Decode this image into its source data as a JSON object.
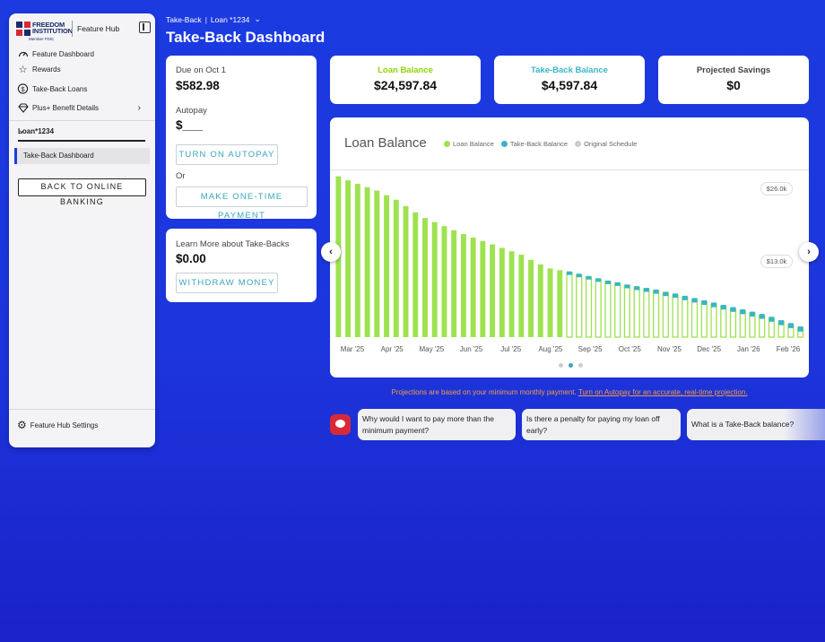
{
  "sidebar": {
    "logo": {
      "line1": "FREEDOM",
      "line2": "INSTITUTION",
      "sub": "Member FDIC"
    },
    "hub_label": "Feature Hub",
    "items": [
      {
        "label": "Feature Dashboard",
        "icon": "gauge-icon"
      },
      {
        "label": "Rewards",
        "icon": "star-icon"
      },
      {
        "label": "Take-Back Loans",
        "icon": "dollar-cycle-icon"
      },
      {
        "label": "Plus+ Benefit Details",
        "icon": "diamond-icon"
      }
    ],
    "loan_select": "Loan*1234",
    "sub_item": "Take-Back Dashboard",
    "back_button": "BACK TO ONLINE BANKING",
    "settings": "Feature Hub Settings"
  },
  "header": {
    "breadcrumb_1": "Take-Back",
    "breadcrumb_2": "Loan *1234",
    "title": "Take-Back Dashboard"
  },
  "due_card": {
    "due_label": "Due on Oct 1",
    "due_amount": "$582.98",
    "autopay_label": "Autopay",
    "autopay_value": "$___",
    "autopay_button": "TURN ON AUTOPAY",
    "or": "Or",
    "one_time_button": "MAKE ONE-TIME PAYMENT"
  },
  "learn_card": {
    "label": "Learn More about Take-Backs",
    "amount": "$0.00",
    "button": "WITHDRAW MONEY"
  },
  "stats": [
    {
      "label": "Loan Balance",
      "value": "$24,597.84",
      "color": "#8fd400"
    },
    {
      "label": "Take-Back Balance",
      "value": "$4,597.84",
      "color": "#3ab4c9"
    },
    {
      "label": "Projected Savings",
      "value": "$0",
      "color": "#444444"
    }
  ],
  "chart_data": {
    "type": "bar",
    "title": "Loan Balance",
    "legend": [
      {
        "name": "Loan Balance",
        "color": "#9ee24f"
      },
      {
        "name": "Take-Back Balance",
        "color": "#3ab4c9"
      },
      {
        "name": "Original Schedule",
        "color": "#cccccc"
      }
    ],
    "y_tick_labels": [
      "$26.0k",
      "$13.0k"
    ],
    "x_tick_labels": [
      "Mar '25",
      "Apr '25",
      "May '25",
      "Jun '25",
      "Jul '25",
      "Aug '25",
      "Sep '25",
      "Oct '25",
      "Nov '25",
      "Dec '25",
      "Jan '26",
      "Feb '26"
    ],
    "ylim": [
      0,
      28200
    ],
    "series": [
      {
        "name": "Loan Balance",
        "values": [
          28100,
          27400,
          26800,
          26200,
          25600,
          24800,
          24000,
          22900,
          21800,
          20800,
          20100,
          19400,
          18700,
          18000,
          17400,
          16800,
          16200,
          15600,
          15000,
          14400,
          13500,
          12700,
          12000,
          11700,
          11300,
          10900,
          10500,
          10100,
          9700,
          9400,
          9000,
          8700,
          8400,
          8100,
          7700,
          7400,
          7000,
          6600,
          6200,
          5800,
          5400,
          5000,
          4600,
          4200,
          3800,
          3300,
          2700,
          2200,
          1600
        ]
      },
      {
        "name": "Take-Back Balance",
        "values": [
          0,
          0,
          0,
          0,
          0,
          0,
          0,
          0,
          0,
          0,
          0,
          0,
          0,
          0,
          0,
          0,
          0,
          0,
          0,
          0,
          0,
          0,
          0,
          0,
          500,
          550,
          580,
          600,
          620,
          640,
          660,
          680,
          700,
          720,
          740,
          760,
          780,
          790,
          800,
          810,
          820,
          830,
          840,
          850,
          860,
          870,
          880,
          890,
          900
        ]
      }
    ]
  },
  "pager": {
    "count": 3,
    "active": 1
  },
  "disclaimer": {
    "text": "Projections are based on your minimum monthly payment. ",
    "link": "Turn on Autopay for an accurate, real-time projection."
  },
  "suggestions": [
    "Why would I want to pay more than the minimum payment?",
    "Is there a penalty for paying my loan off early?",
    "What is a Take-Back balance?"
  ]
}
